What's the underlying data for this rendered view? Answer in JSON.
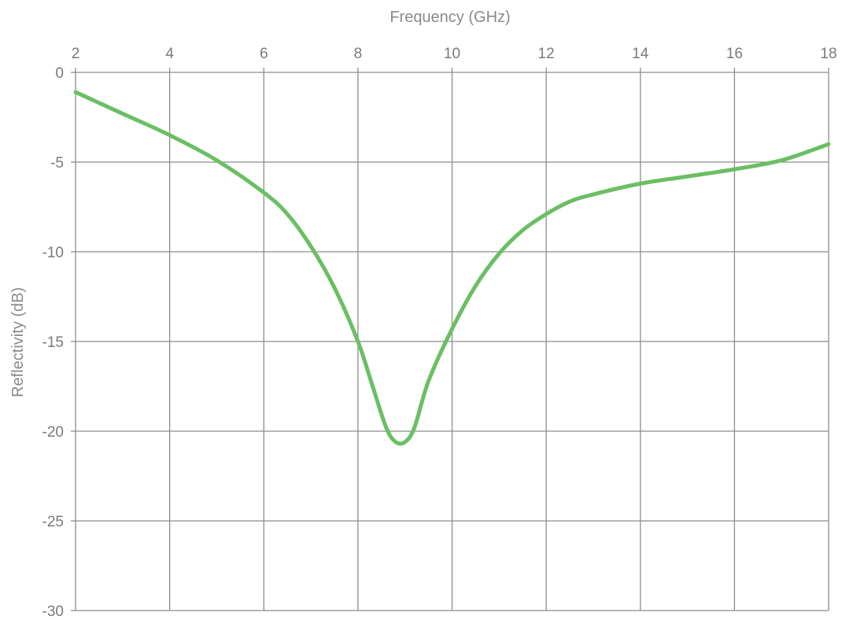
{
  "chart_data": {
    "type": "line",
    "title": "",
    "xlabel": "Frequency (GHz)",
    "ylabel": "Reflectivity (dB)",
    "x_axis_position": "top",
    "xlim": [
      2,
      18
    ],
    "ylim": [
      -30,
      0
    ],
    "x_ticks": [
      2,
      4,
      6,
      8,
      10,
      12,
      14,
      16,
      18
    ],
    "y_ticks": [
      0,
      -5,
      -10,
      -15,
      -20,
      -25,
      -30
    ],
    "grid": true,
    "legend": "none",
    "series": [
      {
        "color": "#6abf63",
        "x": [
          2,
          3,
          4,
          5,
          6,
          6.5,
          7,
          7.5,
          8,
          8.3,
          8.6,
          8.8,
          9.0,
          9.2,
          9.5,
          10,
          10.5,
          11,
          11.5,
          12,
          12.5,
          13,
          14,
          15,
          16,
          17,
          18
        ],
        "y": [
          -1.1,
          -2.3,
          -3.5,
          -4.9,
          -6.7,
          -7.9,
          -9.7,
          -12.0,
          -15.0,
          -17.4,
          -19.8,
          -20.6,
          -20.6,
          -19.8,
          -17.2,
          -14.3,
          -11.9,
          -10.1,
          -8.8,
          -7.9,
          -7.2,
          -6.8,
          -6.2,
          -5.8,
          -5.4,
          -4.9,
          -4.0
        ]
      }
    ]
  }
}
